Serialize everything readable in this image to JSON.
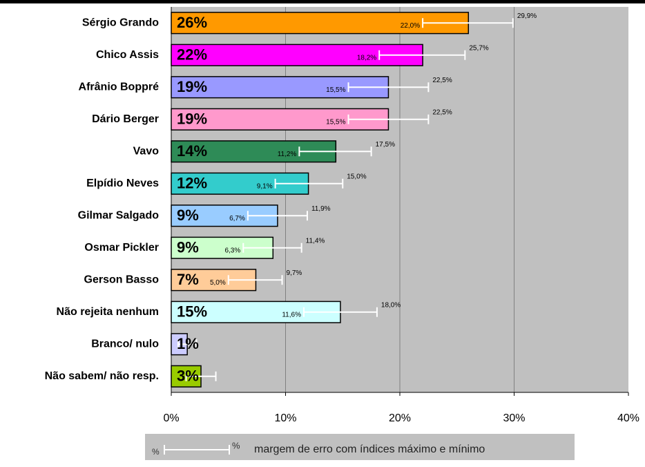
{
  "chart_data": {
    "type": "bar",
    "orientation": "horizontal",
    "categories": [
      "Sérgio Grando",
      "Chico Assis",
      "Afrânio Boppré",
      "Dário Berger",
      "Vavo",
      "Elpídio Neves",
      "Gilmar Salgado",
      "Osmar Pickler",
      "Gerson Basso",
      "Não rejeita nenhum",
      "Branco/ nulo",
      "Não sabem/ não resp."
    ],
    "values": [
      26,
      22,
      19,
      19,
      14.4,
      12,
      9.3,
      8.9,
      7.4,
      14.8,
      1.4,
      2.6
    ],
    "value_labels": [
      "26%",
      "22%",
      "19%",
      "19%",
      "14%",
      "12%",
      "9%",
      "9%",
      "7%",
      "15%",
      "1%",
      "3%"
    ],
    "colors": [
      "#ff9900",
      "#ff00ff",
      "#9999ff",
      "#ff99cc",
      "#2e8b57",
      "#33cccc",
      "#99ccff",
      "#ccffcc",
      "#ffcc99",
      "#ccffff",
      "#ccccff",
      "#99cc00"
    ],
    "error_low": [
      22.0,
      18.2,
      15.5,
      15.5,
      11.2,
      9.1,
      6.7,
      6.3,
      5.0,
      11.6,
      0.6,
      1.3
    ],
    "error_high": [
      29.9,
      25.7,
      22.5,
      22.5,
      17.5,
      15.0,
      11.9,
      11.4,
      9.7,
      18.0,
      2.2,
      3.9
    ],
    "error_low_labels": [
      "22,0%",
      "18,2%",
      "15,5%",
      "15,5%",
      "11,2%",
      "9,1%",
      "6,7%",
      "6,3%",
      "5,0%",
      "11,6%",
      null,
      null
    ],
    "error_high_labels": [
      "29,9%",
      "25,7%",
      "22,5%",
      "22,5%",
      "17,5%",
      "15,0%",
      "11,9%",
      "11,4%",
      "9,7%",
      "18,0%",
      null,
      null
    ],
    "xlim": [
      0,
      40
    ],
    "xticks": [
      {
        "value": 0,
        "label": "0%"
      },
      {
        "value": 10,
        "label": "10%"
      },
      {
        "value": 20,
        "label": "20%"
      },
      {
        "value": 30,
        "label": "30%"
      },
      {
        "value": 40,
        "label": "40%"
      }
    ],
    "grid": true,
    "legend": {
      "left": "%",
      "right": "%",
      "text": "margem de erro com índices máximo e mínimo"
    }
  }
}
